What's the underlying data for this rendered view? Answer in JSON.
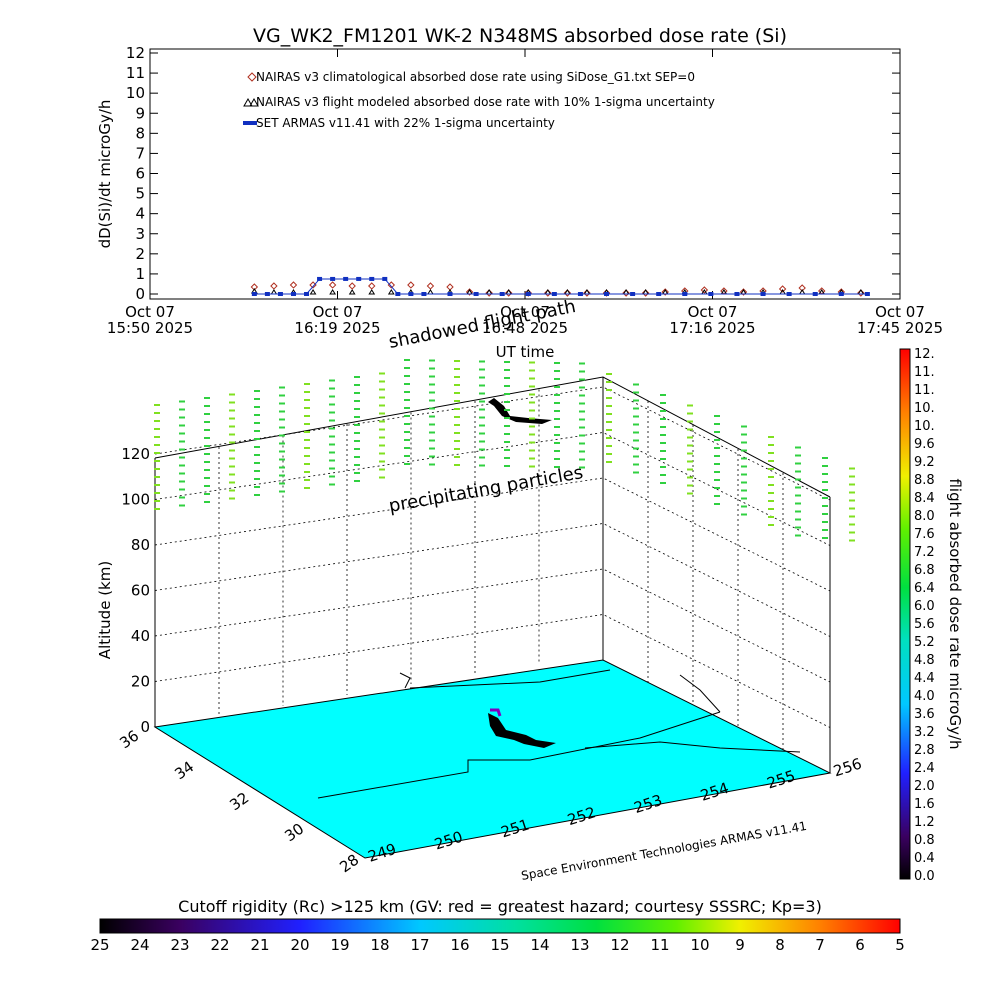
{
  "title": "VG_WK2_FM1201   WK-2 N348MS absorbed dose rate (Si)",
  "top_plot": {
    "ylabel": "dD(Si)/dt microGy/h",
    "xlabel": "UT time",
    "yticks": [
      "0",
      "1",
      "2",
      "3",
      "4",
      "5",
      "6",
      "7",
      "8",
      "9",
      "10",
      "11",
      "12"
    ],
    "xticks": [
      {
        "l1": "Oct 07",
        "l2": "15:50 2025"
      },
      {
        "l1": "Oct 07",
        "l2": "16:19 2025"
      },
      {
        "l1": "Oct 07",
        "l2": "16:48 2025"
      },
      {
        "l1": "Oct 07",
        "l2": "17:16 2025"
      },
      {
        "l1": "Oct 07",
        "l2": "17:45 2025"
      }
    ],
    "legend": [
      "NAIRAS v3 climatological absorbed dose rate using SiDose_G1.txt SEP=0",
      "NAIRAS v3 flight modeled absorbed dose rate with 10% 1-sigma uncertainty",
      "SET ARMAS v11.41 with 22% 1-sigma uncertainty"
    ]
  },
  "chart_data": {
    "type": "line",
    "title": "VG_WK2_FM1201   WK-2 N348MS absorbed dose rate (Si)",
    "xlabel": "UT time",
    "ylabel": "dD(Si)/dt microGy/h",
    "xlim": [
      "2025-10-07 15:50",
      "2025-10-07 17:45"
    ],
    "ylim": [
      0,
      12
    ],
    "x_minutes_after_1550": [
      0,
      4,
      8,
      12,
      16,
      20,
      24,
      28,
      32,
      36,
      40,
      44,
      48,
      52,
      56,
      60,
      64,
      68,
      72,
      76,
      80,
      84,
      88,
      92,
      96,
      100,
      104,
      108,
      112
    ],
    "series": [
      {
        "name": "NAIRAS v3 climatological absorbed dose rate using SiDose_G1.txt SEP=0",
        "color": "#b03020",
        "x": [
          16,
          19,
          22,
          25,
          28,
          31,
          34,
          37,
          40,
          43,
          46,
          49,
          52,
          55,
          58,
          61,
          64,
          67,
          70,
          73,
          76,
          79,
          82,
          85,
          88,
          91,
          94,
          97,
          100,
          103,
          106,
          109
        ],
        "y": [
          0.35,
          0.4,
          0.45,
          0.45,
          0.45,
          0.4,
          0.4,
          0.45,
          0.45,
          0.4,
          0.35,
          0.1,
          0.05,
          0.05,
          0.05,
          0.05,
          0.05,
          0.05,
          0.05,
          0.05,
          0.05,
          0.1,
          0.15,
          0.2,
          0.15,
          0.1,
          0.15,
          0.25,
          0.3,
          0.15,
          0.1,
          0.05
        ]
      },
      {
        "name": "NAIRAS v3 flight modeled absorbed dose rate with 10% 1-sigma uncertainty",
        "color": "#000000",
        "x": [
          16,
          19,
          22,
          25,
          28,
          31,
          34,
          37,
          40,
          43,
          46,
          49,
          52,
          55,
          58,
          61,
          64,
          67,
          70,
          73,
          76,
          79,
          82,
          85,
          88,
          91,
          94,
          97,
          100,
          103,
          106,
          109
        ],
        "y": [
          0.15,
          0.1,
          0.1,
          0.1,
          0.1,
          0.1,
          0.1,
          0.1,
          0.1,
          0.1,
          0.1,
          0.1,
          0.1,
          0.1,
          0.1,
          0.1,
          0.1,
          0.1,
          0.1,
          0.1,
          0.1,
          0.1,
          0.1,
          0.1,
          0.1,
          0.1,
          0.1,
          0.1,
          0.1,
          0.1,
          0.1,
          0.1
        ]
      },
      {
        "name": "SET ARMAS v11.41 with 22% 1-sigma uncertainty",
        "color": "#1030c0",
        "x": [
          16,
          18,
          20,
          22,
          24,
          26,
          28,
          30,
          32,
          34,
          36,
          38,
          40,
          42,
          46,
          50,
          54,
          58,
          62,
          66,
          70,
          74,
          78,
          82,
          86,
          90,
          94,
          98,
          102,
          106,
          110
        ],
        "y": [
          0.0,
          0.0,
          0.0,
          0.0,
          0.0,
          0.75,
          0.75,
          0.75,
          0.75,
          0.75,
          0.75,
          0.0,
          0.0,
          0.0,
          0.0,
          0.0,
          0.0,
          0.0,
          0.0,
          0.0,
          0.0,
          0.0,
          0.0,
          0.0,
          0.0,
          0.0,
          0.0,
          0.0,
          0.0,
          0.0,
          0.0
        ]
      }
    ]
  },
  "three_d": {
    "zlabel": "Altitude (km)",
    "zticks": [
      "0",
      "20",
      "40",
      "60",
      "80",
      "100",
      "120"
    ],
    "xticks": [
      "249",
      "250",
      "251",
      "252",
      "253",
      "254",
      "255",
      "256"
    ],
    "yticks": [
      "28",
      "30",
      "32",
      "34",
      "36"
    ],
    "xlabel": "Space Environment Technologies ARMAS v11.41",
    "annotation_top": "shadowed flight path",
    "annotation_mid": "precipitating particles",
    "map_color": "#00ffff"
  },
  "right_colorbar": {
    "label": "flight absorbed dose rate microGy/h",
    "ticks": [
      "12.",
      "11.",
      "11.",
      "10.",
      "10.",
      "9.6",
      "9.2",
      "8.8",
      "8.4",
      "8.0",
      "7.6",
      "7.2",
      "6.8",
      "6.4",
      "6.0",
      "5.6",
      "5.2",
      "4.8",
      "4.4",
      "4.0",
      "3.6",
      "3.2",
      "2.8",
      "2.4",
      "2.0",
      "1.6",
      "1.2",
      "0.8",
      "0.4",
      "0.0"
    ]
  },
  "bottom_colorbar": {
    "label": "Cutoff rigidity (Rc) >125 km (GV: red = greatest hazard; courtesy SSSRC; Kp=3)",
    "ticks": [
      "25",
      "24",
      "23",
      "22",
      "21",
      "20",
      "19",
      "18",
      "17",
      "16",
      "15",
      "14",
      "13",
      "12",
      "11",
      "10",
      "9",
      "8",
      "7",
      "6",
      "5"
    ]
  }
}
